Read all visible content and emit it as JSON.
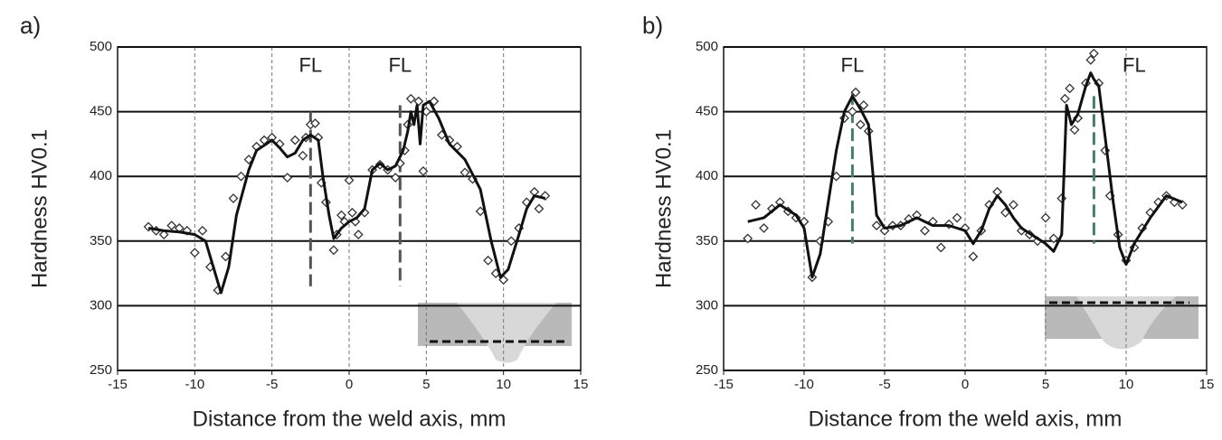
{
  "chart_data": [
    {
      "type": "scatter",
      "panel_label": "a)",
      "xlabel": "Distance from the weld axis, mm",
      "ylabel": "Hardness HV0.1",
      "xlim": [
        -15,
        15
      ],
      "xticks": [
        -15,
        -10,
        -5,
        0,
        5,
        10,
        15
      ],
      "ylim": [
        250,
        500
      ],
      "yticks": [
        250,
        300,
        350,
        400,
        450,
        500
      ],
      "grid": true,
      "series": [
        {
          "style": "diamond",
          "color": "#333333",
          "x": [
            -13,
            -12.5,
            -12,
            -11.5,
            -11,
            -10.5,
            -10,
            -9.5,
            -9,
            -8.5,
            -8,
            -7.5,
            -7,
            -6.5,
            -6,
            -5.5,
            -5,
            -4.5,
            -4,
            -3.5,
            -3,
            -2.8,
            -2.5,
            -2.2,
            -2,
            -1.8,
            -1.5,
            -1,
            -0.8,
            -0.5,
            -0.3,
            0,
            0.2,
            0.4,
            0.6,
            1,
            1.5,
            2,
            2.5,
            3,
            3.3,
            3.6,
            3.8,
            4,
            4.5,
            4.8,
            5,
            5.5,
            6,
            6.5,
            7,
            7.5,
            8,
            8.5,
            9,
            9.5,
            10,
            10.5,
            11,
            11.5,
            12,
            12.3,
            12.7
          ],
          "values": [
            361,
            358,
            355,
            362,
            360,
            358,
            341,
            358,
            330,
            312,
            338,
            383,
            400,
            413,
            423,
            428,
            430,
            425,
            399,
            428,
            416,
            430,
            440,
            441,
            430,
            395,
            380,
            343,
            355,
            370,
            365,
            397,
            372,
            365,
            355,
            372,
            405,
            409,
            405,
            399,
            410,
            420,
            440,
            460,
            458,
            404,
            450,
            458,
            432,
            428,
            423,
            403,
            398,
            373,
            335,
            325,
            320,
            350,
            360,
            380,
            388,
            375,
            385
          ]
        },
        {
          "style": "line",
          "color": "#111111",
          "x": [
            -13,
            -12,
            -11,
            -10,
            -9.3,
            -8.8,
            -8.3,
            -7.8,
            -7.3,
            -6.5,
            -6,
            -5,
            -4.5,
            -4,
            -3.5,
            -3,
            -2.5,
            -2,
            -1.7,
            -1.3,
            -1,
            -0.5,
            0,
            0.5,
            1,
            1.5,
            2,
            2.5,
            3,
            3.5,
            3.8,
            4,
            4.2,
            4.4,
            4.6,
            4.8,
            5.2,
            5.8,
            6.5,
            7.5,
            8.5,
            9.2,
            9.8,
            10.3,
            11,
            11.5,
            12,
            12.7
          ],
          "values": [
            360,
            358,
            357,
            355,
            350,
            330,
            310,
            330,
            370,
            405,
            420,
            428,
            422,
            415,
            418,
            428,
            432,
            428,
            400,
            370,
            352,
            360,
            365,
            368,
            375,
            405,
            410,
            405,
            408,
            420,
            435,
            450,
            440,
            455,
            425,
            455,
            458,
            445,
            425,
            413,
            390,
            350,
            322,
            328,
            355,
            375,
            385,
            383
          ]
        }
      ],
      "annotations": [
        {
          "text": "FL",
          "x": -2.5,
          "y": 485
        },
        {
          "text": "FL",
          "x": 3.3,
          "y": 485
        }
      ],
      "fusion_lines": [
        {
          "x": -2.5,
          "y_top": 450,
          "y_bottom": 315,
          "color": "#555555"
        },
        {
          "x": 3.3,
          "y_top": 455,
          "y_bottom": 315,
          "color": "#555555"
        }
      ]
    },
    {
      "type": "scatter",
      "panel_label": "b)",
      "xlabel": "Distance from the weld axis, mm",
      "ylabel": "Hardness HV0.1",
      "xlim": [
        -15,
        15
      ],
      "xticks": [
        -15,
        -10,
        -5,
        0,
        5,
        10,
        15
      ],
      "ylim": [
        250,
        500
      ],
      "yticks": [
        250,
        300,
        350,
        400,
        450,
        500
      ],
      "grid": true,
      "series": [
        {
          "style": "diamond",
          "color": "#333333",
          "x": [
            -13.5,
            -13,
            -12.5,
            -12,
            -11.5,
            -11,
            -10.5,
            -10,
            -9.5,
            -9,
            -8.5,
            -8,
            -7.5,
            -7,
            -6.8,
            -6.5,
            -6.3,
            -6,
            -5.5,
            -5,
            -4.5,
            -4,
            -3.5,
            -3,
            -2.5,
            -2,
            -1.5,
            -1,
            -0.5,
            0,
            0.5,
            1,
            1.5,
            2,
            2.5,
            3,
            3.5,
            4,
            4.5,
            5,
            5.5,
            6,
            6.2,
            6.5,
            6.8,
            7,
            7.5,
            7.8,
            8,
            8.3,
            8.7,
            9,
            9.5,
            10,
            10.5,
            11,
            11.5,
            12,
            12.5,
            13,
            13.5
          ],
          "values": [
            352,
            378,
            360,
            375,
            380,
            373,
            368,
            365,
            322,
            350,
            365,
            400,
            445,
            450,
            465,
            440,
            455,
            435,
            362,
            358,
            362,
            362,
            367,
            370,
            358,
            365,
            345,
            363,
            368,
            360,
            338,
            358,
            378,
            388,
            372,
            378,
            358,
            355,
            350,
            368,
            352,
            383,
            460,
            468,
            436,
            445,
            472,
            490,
            495,
            472,
            420,
            385,
            355,
            335,
            345,
            360,
            372,
            380,
            385,
            380,
            378
          ]
        },
        {
          "style": "line",
          "color": "#111111",
          "x": [
            -13.5,
            -12.5,
            -11.5,
            -10.5,
            -10,
            -9.5,
            -9,
            -8.5,
            -8,
            -7.5,
            -7,
            -6.5,
            -6,
            -5.5,
            -5,
            -4,
            -3,
            -2,
            -1,
            0,
            0.5,
            1,
            1.5,
            2,
            2.5,
            3,
            3.5,
            4.5,
            5,
            5.5,
            6,
            6.3,
            6.6,
            7,
            7.5,
            7.8,
            8,
            8.3,
            8.7,
            9.2,
            9.6,
            10,
            10.5,
            11.5,
            12.5,
            13.5
          ],
          "values": [
            365,
            368,
            378,
            370,
            360,
            322,
            340,
            380,
            420,
            450,
            462,
            452,
            440,
            370,
            360,
            362,
            368,
            362,
            362,
            358,
            348,
            358,
            375,
            385,
            378,
            368,
            360,
            352,
            348,
            342,
            355,
            455,
            440,
            448,
            470,
            480,
            475,
            470,
            430,
            380,
            345,
            332,
            348,
            368,
            385,
            380
          ]
        }
      ],
      "annotations": [
        {
          "text": "FL",
          "x": -7,
          "y": 485
        },
        {
          "text": "FL",
          "x": 10.5,
          "y": 485
        }
      ],
      "fusion_lines": [
        {
          "x": -7,
          "y_top": 465,
          "y_bottom": 348,
          "color": "#4a7a70"
        },
        {
          "x": 8,
          "y_top": 462,
          "y_bottom": 348,
          "color": "#4a7a70"
        }
      ]
    }
  ]
}
